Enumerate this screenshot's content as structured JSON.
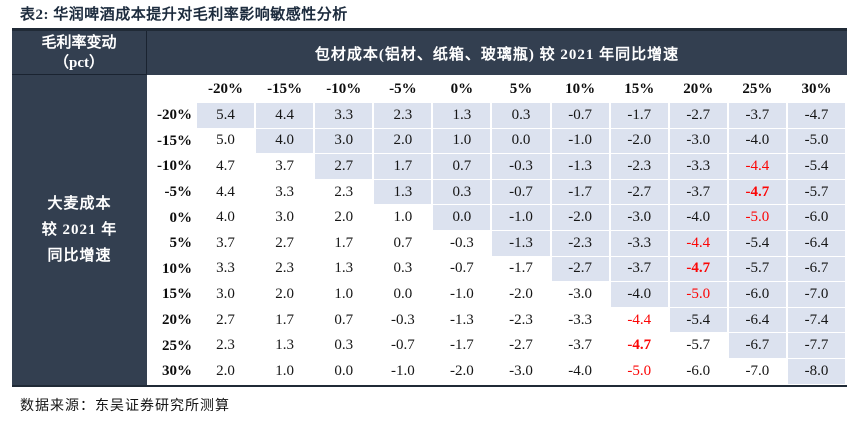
{
  "title": "表2:  华润啤酒成本提升对毛利率影响敏感性分析",
  "source": "数据来源：东吴证券研究所测算",
  "colors": {
    "header_bg": "#333f50",
    "cell_blue": "#dce2ef",
    "highlight_red": "#fb0606",
    "title_color": "#1d2c3e"
  },
  "table": {
    "corner_header_line1": "毛利率变动",
    "corner_header_line2": "（pct）",
    "col_group_header": "包材成本(铝材、纸箱、玻璃瓶)  较 2021 年同比增速",
    "row_group_header_lines": [
      "大麦成本",
      "较 2021 年",
      "同比增速"
    ],
    "col_headers": [
      "-20%",
      "-15%",
      "-10%",
      "-5%",
      "0%",
      "5%",
      "10%",
      "15%",
      "20%",
      "25%",
      "30%"
    ],
    "row_headers": [
      "-20%",
      "-15%",
      "-10%",
      "-5%",
      "0%",
      "5%",
      "10%",
      "15%",
      "20%",
      "25%",
      "30%"
    ],
    "rows": [
      [
        "5.4",
        "4.4",
        "3.3",
        "2.3",
        "1.3",
        "0.3",
        "-0.7",
        "-1.7",
        "-2.7",
        "-3.7",
        "-4.7"
      ],
      [
        "5.0",
        "4.0",
        "3.0",
        "2.0",
        "1.0",
        "0.0",
        "-1.0",
        "-2.0",
        "-3.0",
        "-4.0",
        "-5.0"
      ],
      [
        "4.7",
        "3.7",
        "2.7",
        "1.7",
        "0.7",
        "-0.3",
        "-1.3",
        "-2.3",
        "-3.3",
        "-4.4",
        "-5.4"
      ],
      [
        "4.4",
        "3.3",
        "2.3",
        "1.3",
        "0.3",
        "-0.7",
        "-1.7",
        "-2.7",
        "-3.7",
        "-4.7",
        "-5.7"
      ],
      [
        "4.0",
        "3.0",
        "2.0",
        "1.0",
        "0.0",
        "-1.0",
        "-2.0",
        "-3.0",
        "-4.0",
        "-5.0",
        "-6.0"
      ],
      [
        "3.7",
        "2.7",
        "1.7",
        "0.7",
        "-0.3",
        "-1.3",
        "-2.3",
        "-3.3",
        "-4.4",
        "-5.4",
        "-6.4"
      ],
      [
        "3.3",
        "2.3",
        "1.3",
        "0.3",
        "-0.7",
        "-1.7",
        "-2.7",
        "-3.7",
        "-4.7",
        "-5.7",
        "-6.7"
      ],
      [
        "3.0",
        "2.0",
        "1.0",
        "0.0",
        "-1.0",
        "-2.0",
        "-3.0",
        "-4.0",
        "-5.0",
        "-6.0",
        "-7.0"
      ],
      [
        "2.7",
        "1.7",
        "0.7",
        "-0.3",
        "-1.3",
        "-2.3",
        "-3.3",
        "-4.4",
        "-5.4",
        "-6.4",
        "-7.4"
      ],
      [
        "2.3",
        "1.3",
        "0.3",
        "-0.7",
        "-1.7",
        "-2.7",
        "-3.7",
        "-4.7",
        "-5.7",
        "-6.7",
        "-7.7"
      ],
      [
        "2.0",
        "1.0",
        "0.0",
        "-1.0",
        "-2.0",
        "-3.0",
        "-4.0",
        "-5.0",
        "-6.0",
        "-7.0",
        "-8.0"
      ]
    ],
    "blue_rule": "cell is light-blue when column_index >= row_index, else white",
    "red_cells": [
      [
        2,
        9
      ],
      [
        4,
        9
      ],
      [
        5,
        8
      ],
      [
        7,
        8
      ],
      [
        8,
        7
      ],
      [
        10,
        7
      ]
    ],
    "bold_red_cells": [
      [
        3,
        9
      ],
      [
        6,
        8
      ],
      [
        9,
        7
      ]
    ]
  }
}
